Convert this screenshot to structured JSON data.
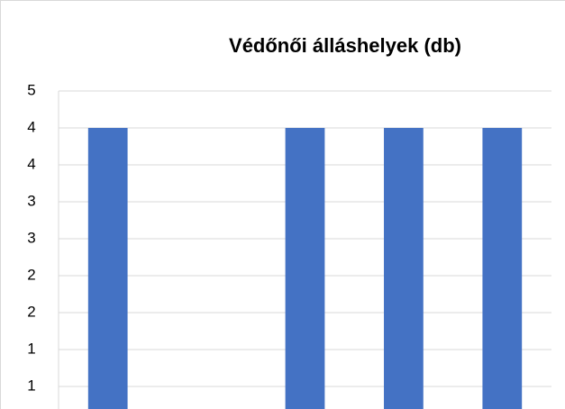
{
  "chart_data": {
    "type": "bar",
    "title": "Védőnői álláshelyek (db)",
    "categories": [
      null,
      null,
      null,
      null,
      null
    ],
    "values": [
      4,
      0,
      4,
      4,
      4
    ],
    "color": "#4472c4",
    "ylim": [
      0,
      4.5
    ],
    "yticks": [
      {
        "value": 0.5,
        "label": "1"
      },
      1,
      {
        "value": 1.5,
        "label": "2"
      },
      2,
      {
        "value": 2.5,
        "label": "3"
      },
      3,
      {
        "value": 3.5,
        "label": "4"
      },
      4,
      {
        "value": 4.5,
        "label": "5"
      }
    ],
    "grid": true
  }
}
